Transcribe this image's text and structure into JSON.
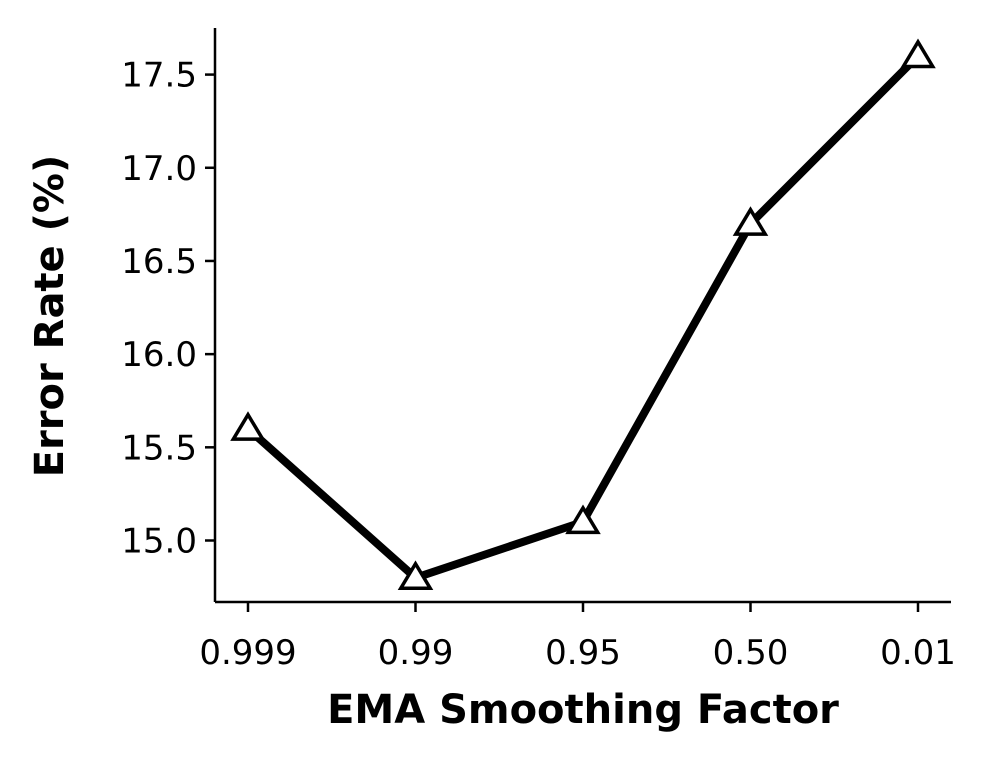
{
  "chart_data": {
    "type": "line",
    "categories": [
      "0.999",
      "0.99",
      "0.95",
      "0.50",
      "0.01"
    ],
    "series": [
      {
        "name": "Error Rate",
        "values": [
          15.6,
          14.8,
          15.1,
          16.7,
          17.6
        ]
      }
    ],
    "xlabel": "EMA Smoothing Factor",
    "ylabel": "Error Rate (%)",
    "ylim": [
      14.67,
      17.75
    ],
    "yticks": [
      15.0,
      15.5,
      16.0,
      16.5,
      17.0,
      17.5
    ],
    "ytick_labels": [
      "15.0",
      "15.5",
      "16.0",
      "16.5",
      "17.0",
      "17.5"
    ],
    "marker": "open-triangle",
    "line_color": "#000000",
    "grid": false,
    "spines": "left-bottom"
  }
}
